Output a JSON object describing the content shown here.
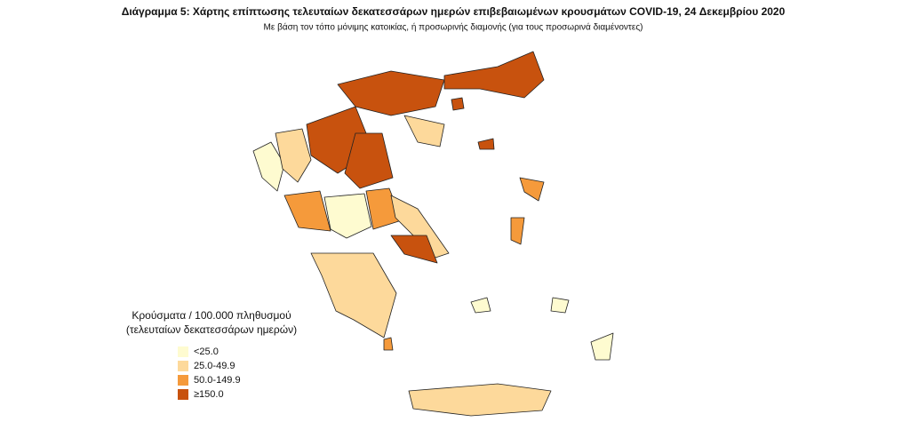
{
  "header": {
    "title": "Διάγραμμα 5: Χάρτης επίπτωσης τελευταίων δεκατεσσάρων ημερών επιβεβαιωμένων κρουσμάτων COVID-19, 24 Δεκεμβρίου 2020",
    "subtitle": "Με βάση τον τόπο μόνιμης κατοικίας, ή προσωρινής διαμονής (για τους προσωρινά διαμένοντες)"
  },
  "legend": {
    "title_lines": [
      "Κρούσματα / 100.000 πληθυσμού",
      "(τελευταίων δεκατεσσάρων ημερών)"
    ],
    "items": [
      {
        "label": "<25.0",
        "color": "#fefbd0"
      },
      {
        "label": "25.0-49.9",
        "color": "#fdd99b"
      },
      {
        "label": "50.0-149.9",
        "color": "#f59a3b"
      },
      {
        "label": "≥150.0",
        "color": "#c8520e"
      }
    ]
  }
}
